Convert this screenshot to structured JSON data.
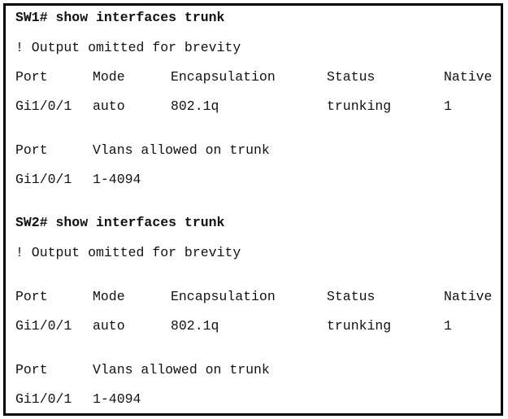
{
  "blocks": [
    {
      "command": "SW1# show interfaces trunk",
      "note": "! Output omitted for brevity",
      "headers": [
        "Port",
        "Mode",
        "Encapsulation",
        "Status",
        "Native"
      ],
      "row": [
        "Gi1/0/1",
        "auto",
        "802.1q",
        "trunking",
        "1"
      ],
      "vlan_headers": [
        "Port",
        "Vlans allowed on trunk"
      ],
      "vlan_row": [
        "Gi1/0/1",
        "1-4094"
      ]
    },
    {
      "command": "SW2# show interfaces trunk",
      "note": "! Output omitted for brevity",
      "headers": [
        "Port",
        "Mode",
        "Encapsulation",
        "Status",
        "Native"
      ],
      "row": [
        "Gi1/0/1",
        "auto",
        "802.1q",
        "trunking",
        "1"
      ],
      "vlan_headers": [
        "Port",
        "Vlans allowed on trunk"
      ],
      "vlan_row": [
        "Gi1/0/1",
        "1-4094"
      ]
    }
  ]
}
